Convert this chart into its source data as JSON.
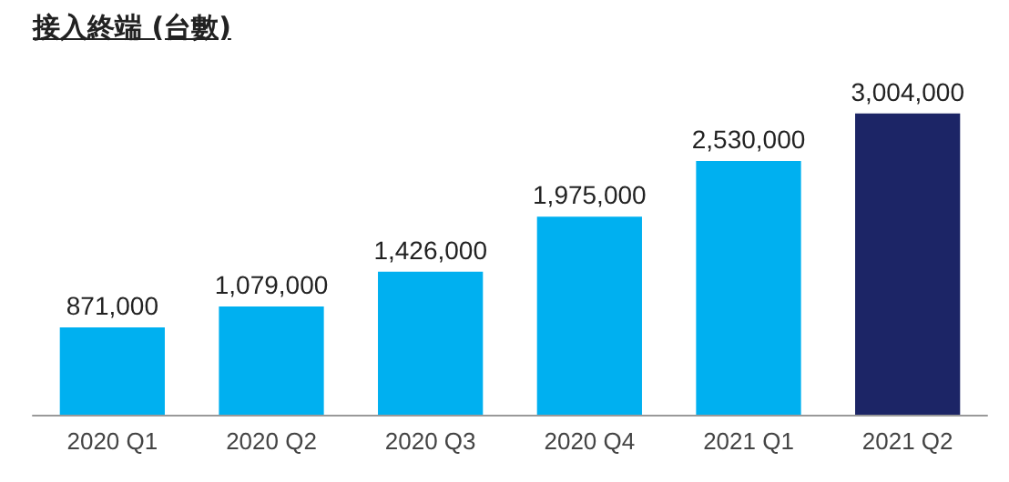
{
  "chart_data": {
    "type": "bar",
    "title": "接入終端 (台數)",
    "categories": [
      "2020 Q1",
      "2020 Q2",
      "2020 Q3",
      "2020 Q4",
      "2021 Q1",
      "2021 Q2"
    ],
    "values": [
      871000,
      1079000,
      1426000,
      1975000,
      2530000,
      3004000
    ],
    "value_labels": [
      "871,000",
      "1,079,000",
      "1,426,000",
      "1,975,000",
      "2,530,000",
      "3,004,000"
    ],
    "colors": [
      "#00b0f0",
      "#00b0f0",
      "#00b0f0",
      "#00b0f0",
      "#00b0f0",
      "#1c2566"
    ]
  }
}
